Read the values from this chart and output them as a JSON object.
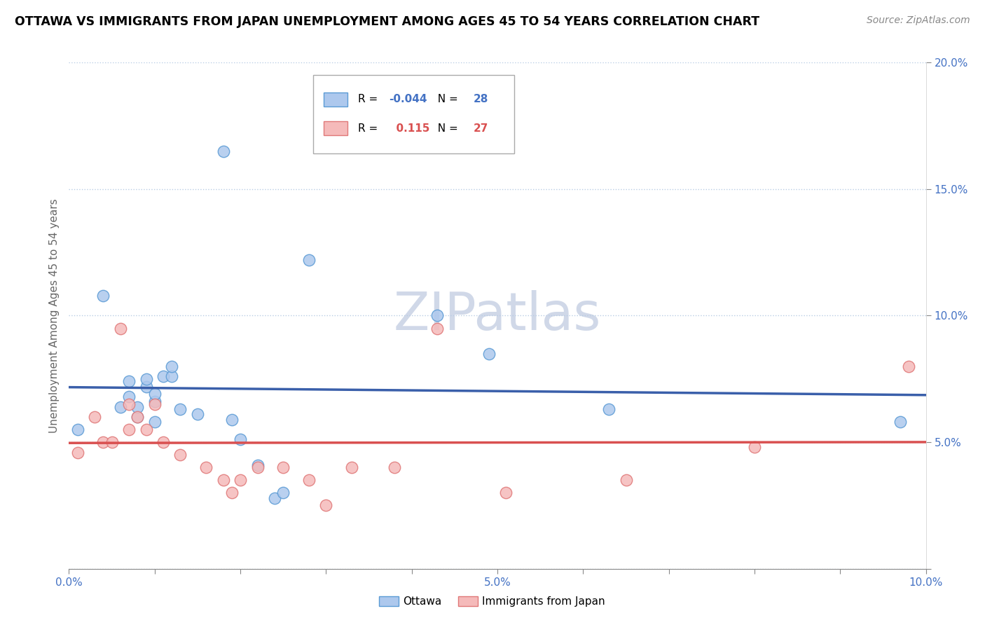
{
  "title": "OTTAWA VS IMMIGRANTS FROM JAPAN UNEMPLOYMENT AMONG AGES 45 TO 54 YEARS CORRELATION CHART",
  "source": "Source: ZipAtlas.com",
  "ylabel": "Unemployment Among Ages 45 to 54 years",
  "xlim": [
    0.0,
    0.1
  ],
  "ylim": [
    0.0,
    0.2
  ],
  "xticks": [
    0.0,
    0.01,
    0.02,
    0.03,
    0.04,
    0.05,
    0.06,
    0.07,
    0.08,
    0.09,
    0.1
  ],
  "yticks": [
    0.0,
    0.05,
    0.1,
    0.15,
    0.2
  ],
  "xtick_labels": [
    "0.0%",
    "",
    "",
    "",
    "",
    "5.0%",
    "",
    "",
    "",
    "",
    "10.0%"
  ],
  "ytick_labels": [
    "",
    "5.0%",
    "10.0%",
    "15.0%",
    "20.0%"
  ],
  "ottawa_R": -0.044,
  "ottawa_N": 28,
  "japan_R": 0.115,
  "japan_N": 27,
  "ottawa_color": "#adc8ed",
  "ottawa_edge_color": "#5b9bd5",
  "japan_color": "#f5baba",
  "japan_edge_color": "#e07878",
  "ottawa_line_color": "#3a5faa",
  "japan_line_color": "#d95050",
  "watermark_color": "#d0d8e8",
  "watermark_text": "ZIPatlas",
  "ottawa_x": [
    0.001,
    0.004,
    0.006,
    0.007,
    0.007,
    0.008,
    0.008,
    0.009,
    0.009,
    0.01,
    0.01,
    0.01,
    0.011,
    0.012,
    0.012,
    0.013,
    0.015,
    0.018,
    0.019,
    0.02,
    0.022,
    0.024,
    0.025,
    0.028,
    0.043,
    0.049,
    0.063,
    0.097
  ],
  "ottawa_y": [
    0.055,
    0.108,
    0.064,
    0.068,
    0.074,
    0.06,
    0.064,
    0.072,
    0.075,
    0.058,
    0.066,
    0.069,
    0.076,
    0.076,
    0.08,
    0.063,
    0.061,
    0.165,
    0.059,
    0.051,
    0.041,
    0.028,
    0.03,
    0.122,
    0.1,
    0.085,
    0.063,
    0.058
  ],
  "japan_x": [
    0.001,
    0.003,
    0.004,
    0.005,
    0.006,
    0.007,
    0.007,
    0.008,
    0.009,
    0.01,
    0.011,
    0.013,
    0.016,
    0.018,
    0.019,
    0.02,
    0.022,
    0.025,
    0.028,
    0.03,
    0.033,
    0.038,
    0.043,
    0.051,
    0.065,
    0.08,
    0.098
  ],
  "japan_y": [
    0.046,
    0.06,
    0.05,
    0.05,
    0.095,
    0.065,
    0.055,
    0.06,
    0.055,
    0.065,
    0.05,
    0.045,
    0.04,
    0.035,
    0.03,
    0.035,
    0.04,
    0.04,
    0.035,
    0.025,
    0.04,
    0.04,
    0.095,
    0.03,
    0.035,
    0.048,
    0.08
  ]
}
